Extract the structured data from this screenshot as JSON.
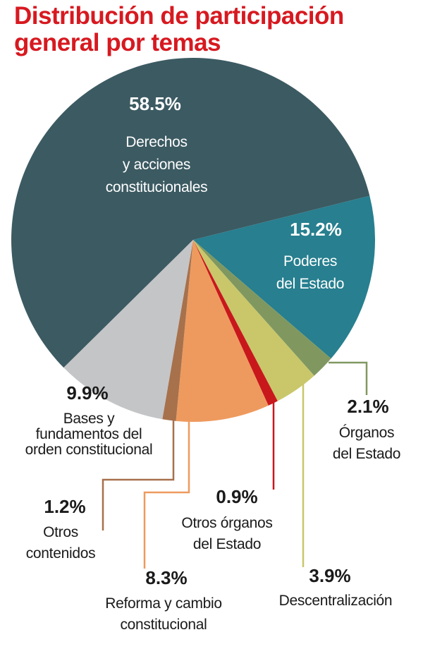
{
  "chart_data": {
    "type": "pie",
    "title": "Distribución de participación general por temas",
    "slices": [
      {
        "label_lines": [
          "Derechos",
          "y acciones",
          "constitucionales"
        ],
        "pct_label": "58.5%",
        "value": 58.5,
        "color": "#3c5a62"
      },
      {
        "label_lines": [
          "Poderes",
          "del Estado"
        ],
        "pct_label": "15.2%",
        "value": 15.2,
        "color": "#277f8f"
      },
      {
        "label_lines": [
          "Órganos",
          "del Estado"
        ],
        "pct_label": "2.1%",
        "value": 2.1,
        "color": "#809860"
      },
      {
        "label_lines": [
          "Descentralización"
        ],
        "pct_label": "3.9%",
        "value": 3.9,
        "color": "#c9c76a"
      },
      {
        "label_lines": [
          "Otros órganos",
          "del Estado"
        ],
        "pct_label": "0.9%",
        "value": 0.9,
        "color": "#c8181c"
      },
      {
        "label_lines": [
          "Reforma y cambio",
          "constitucional"
        ],
        "pct_label": "8.3%",
        "value": 8.3,
        "color": "#ee9a5e"
      },
      {
        "label_lines": [
          "Otros",
          "contenidos"
        ],
        "pct_label": "1.2%",
        "value": 1.2,
        "color": "#a7714c"
      },
      {
        "label_lines": [
          "Bases y",
          "fundamentos del",
          "orden constitucional"
        ],
        "pct_label": "9.9%",
        "value": 9.9,
        "color": "#c4c5c7"
      }
    ]
  }
}
